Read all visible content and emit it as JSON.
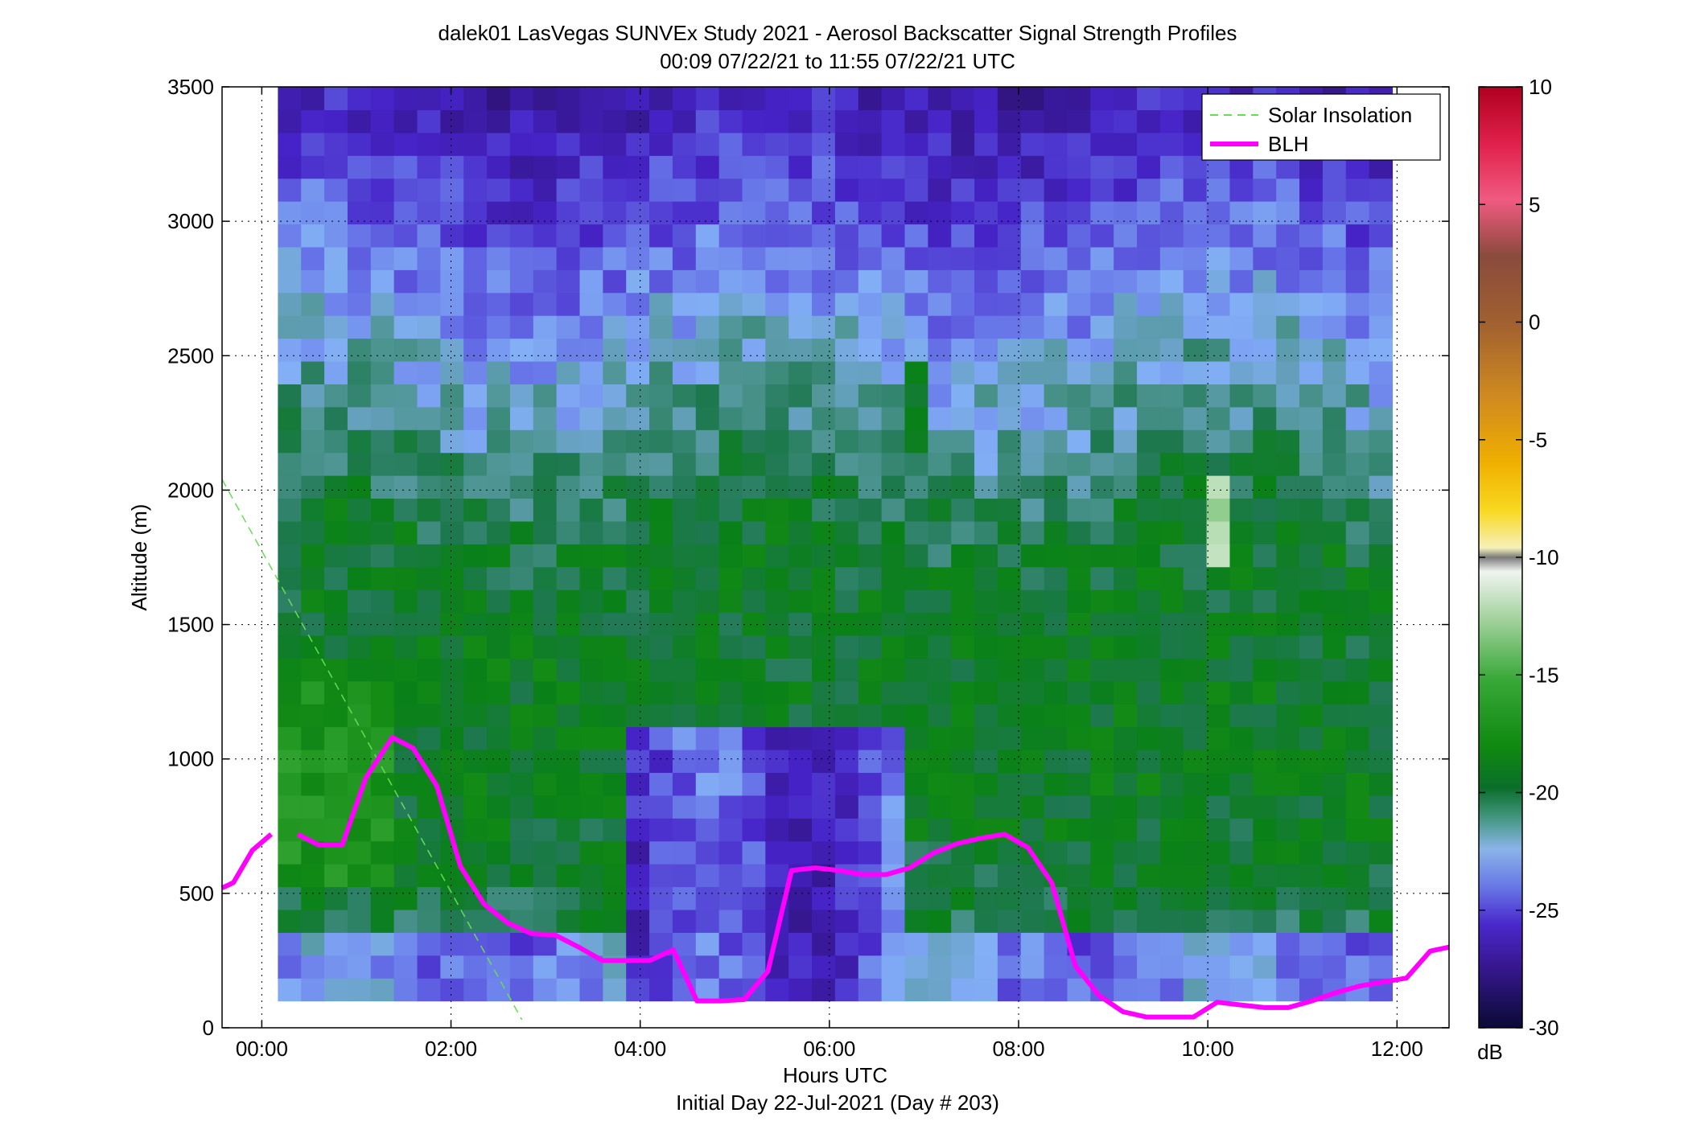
{
  "chart_data": {
    "type": "heatmap",
    "title": "dalek01 LasVegas SUNVEx Study 2021 - Aerosol Backscatter Signal Strength Profiles",
    "subtitle": "00:09 07/22/21 to 11:55 07/22/21  UTC",
    "xlabel": "Hours UTC",
    "xlabel2": "Initial Day 22-Jul-2021 (Day # 203)",
    "ylabel": "Altitude (m)",
    "xlim": [
      -0.42,
      12.55
    ],
    "ylim": [
      0,
      3500
    ],
    "x_ticks": [
      0,
      2,
      4,
      6,
      8,
      10,
      12
    ],
    "x_tick_labels": [
      "00:00",
      "02:00",
      "04:00",
      "06:00",
      "08:00",
      "10:00",
      "12:00"
    ],
    "y_ticks": [
      0,
      500,
      1000,
      1500,
      2000,
      2500,
      3000,
      3500
    ],
    "y_tick_labels": [
      "0",
      "500",
      "1000",
      "1500",
      "2000",
      "2500",
      "3000",
      "3500"
    ],
    "grid": true,
    "legend_position": "top-right",
    "colorbar": {
      "label": "dB",
      "range": [
        -30,
        10
      ],
      "ticks": [
        10,
        5,
        0,
        -5,
        -10,
        -15,
        -20,
        -25,
        -30
      ],
      "tick_labels": [
        "10",
        "5",
        "0",
        "-5",
        "-10",
        "-15",
        "-20",
        "-25",
        "-30"
      ]
    },
    "heatmap": {
      "x_start": 0.17,
      "x_end": 11.95,
      "y_start": 100,
      "y_end": 3500,
      "description_columns": 48,
      "description_rows": 40
    },
    "series": [
      {
        "name": "Solar Insolation",
        "style": "dashed",
        "color": "#66dd55",
        "x": [
          -0.42,
          2.75
        ],
        "y": [
          2040,
          30
        ]
      },
      {
        "name": "BLH",
        "style": "solid",
        "color": "#ff00ff",
        "segments": [
          {
            "x": [
              -0.42,
              -0.3,
              -0.1,
              0.1
            ],
            "y": [
              520,
              540,
              660,
              720
            ]
          },
          {
            "x": [
              0.38,
              0.6,
              0.85,
              1.1,
              1.38,
              1.6,
              1.85,
              2.1,
              2.35,
              2.6,
              2.85,
              3.1,
              3.35,
              3.6,
              3.85,
              4.1,
              4.35,
              4.6,
              4.85,
              5.1,
              5.35,
              5.6,
              5.85,
              6.1,
              6.35,
              6.6,
              6.85,
              7.1,
              7.35,
              7.6,
              7.85,
              8.1,
              8.35,
              8.6,
              8.85,
              9.1,
              9.35,
              9.6,
              9.85,
              10.1,
              10.35,
              10.6,
              10.85,
              11.1,
              11.35,
              11.6,
              11.85,
              12.1,
              12.35,
              12.55
            ],
            "y": [
              720,
              680,
              680,
              930,
              1080,
              1040,
              900,
              600,
              460,
              390,
              350,
              345,
              300,
              250,
              250,
              250,
              290,
              100,
              100,
              105,
              210,
              585,
              595,
              585,
              570,
              570,
              595,
              650,
              685,
              705,
              720,
              670,
              540,
              230,
              120,
              60,
              40,
              40,
              40,
              95,
              85,
              75,
              75,
              100,
              130,
              155,
              170,
              185,
              285,
              300
            ]
          }
        ]
      }
    ]
  },
  "legend": {
    "items": [
      {
        "label": "Solar Insolation"
      },
      {
        "label": "BLH"
      }
    ]
  }
}
